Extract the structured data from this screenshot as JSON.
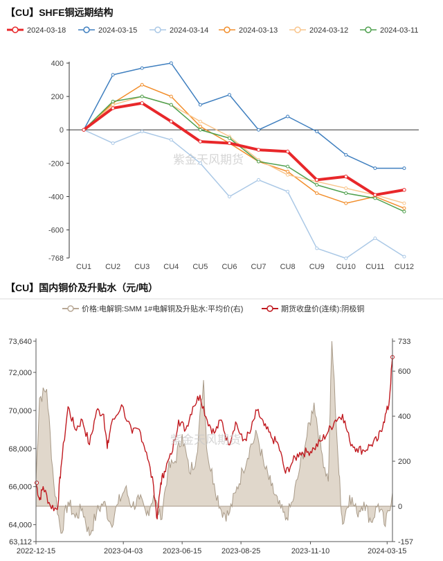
{
  "chart_data": [
    {
      "type": "line",
      "title": "【CU】SHFE铜远期结构",
      "categories": [
        "CU1",
        "CU2",
        "CU3",
        "CU4",
        "CU5",
        "CU6",
        "CU7",
        "CU8",
        "CU9",
        "CU10",
        "CU11",
        "CU12"
      ],
      "ylim": [
        -768,
        400
      ],
      "yticks": [
        400,
        200,
        0,
        -200,
        -400,
        -600,
        -768
      ],
      "watermark": "紫金天风期货",
      "series": [
        {
          "name": "2024-03-18",
          "color": "#e8272a",
          "width": 4,
          "values": [
            0,
            130,
            160,
            50,
            -70,
            -80,
            -120,
            -130,
            -300,
            -280,
            -390,
            -360
          ]
        },
        {
          "name": "2024-03-15",
          "color": "#3f7fbf",
          "width": 1.5,
          "values": [
            0,
            330,
            370,
            400,
            150,
            210,
            0,
            80,
            -10,
            -150,
            -230,
            -230
          ]
        },
        {
          "name": "2024-03-14",
          "color": "#aac8e6",
          "width": 1.5,
          "values": [
            0,
            -80,
            -10,
            -60,
            -200,
            -400,
            -300,
            -370,
            -710,
            -770,
            -650,
            -760
          ]
        },
        {
          "name": "2024-03-13",
          "color": "#f28e2b",
          "width": 1.5,
          "values": [
            0,
            160,
            270,
            200,
            20,
            -80,
            -190,
            -250,
            -380,
            -440,
            -400,
            -470
          ]
        },
        {
          "name": "2024-03-12",
          "color": "#f9c58c",
          "width": 1.5,
          "values": [
            0,
            150,
            200,
            150,
            50,
            -40,
            -180,
            -270,
            -310,
            -350,
            -390,
            -440
          ]
        },
        {
          "name": "2024-03-11",
          "color": "#4ea04e",
          "width": 1.5,
          "values": [
            0,
            170,
            200,
            150,
            0,
            -50,
            -190,
            -220,
            -330,
            -380,
            -410,
            -490
          ]
        }
      ]
    },
    {
      "type": "area+line",
      "title": "【CU】国内铜价及升贴水（元/吨）",
      "x_ticks": [
        "2022-12-15",
        "2023-04-03",
        "2023-06-15",
        "2023-08-25",
        "2023-11-10",
        "2024-03-15"
      ],
      "y_left": {
        "ticks": [
          "73,640",
          "72,000",
          "70,000",
          "68,000",
          "66,000",
          "64,000",
          "63,112"
        ],
        "range": [
          63112,
          73640
        ]
      },
      "y_right": {
        "ticks": [
          "733",
          "600",
          "400",
          "200",
          "0",
          "-157"
        ],
        "range": [
          -157,
          733
        ]
      },
      "watermark": "紫金天风期货",
      "series": [
        {
          "name": "价格:电解铜:SMM 1#电解铜及升贴水:平均价(右)",
          "axis": "right",
          "style": "area",
          "color": "#b8a896",
          "anchors": [
            [
              0,
              120
            ],
            [
              0.01,
              480
            ],
            [
              0.03,
              520
            ],
            [
              0.05,
              100
            ],
            [
              0.07,
              -120
            ],
            [
              0.09,
              20
            ],
            [
              0.11,
              -50
            ],
            [
              0.13,
              -10
            ],
            [
              0.15,
              -130
            ],
            [
              0.17,
              -30
            ],
            [
              0.19,
              20
            ],
            [
              0.21,
              -80
            ],
            [
              0.23,
              10
            ],
            [
              0.25,
              80
            ],
            [
              0.27,
              0
            ],
            [
              0.29,
              30
            ],
            [
              0.31,
              -40
            ],
            [
              0.33,
              50
            ],
            [
              0.35,
              -60
            ],
            [
              0.37,
              160
            ],
            [
              0.39,
              200
            ],
            [
              0.41,
              320
            ],
            [
              0.43,
              150
            ],
            [
              0.45,
              220
            ],
            [
              0.47,
              560
            ],
            [
              0.48,
              240
            ],
            [
              0.5,
              100
            ],
            [
              0.52,
              -20
            ],
            [
              0.54,
              -40
            ],
            [
              0.56,
              60
            ],
            [
              0.58,
              160
            ],
            [
              0.6,
              260
            ],
            [
              0.62,
              320
            ],
            [
              0.64,
              180
            ],
            [
              0.66,
              90
            ],
            [
              0.68,
              10
            ],
            [
              0.7,
              -60
            ],
            [
              0.72,
              20
            ],
            [
              0.74,
              170
            ],
            [
              0.76,
              310
            ],
            [
              0.78,
              460
            ],
            [
              0.8,
              250
            ],
            [
              0.82,
              110
            ],
            [
              0.83,
              740
            ],
            [
              0.85,
              140
            ],
            [
              0.86,
              -80
            ],
            [
              0.88,
              50
            ],
            [
              0.9,
              -30
            ],
            [
              0.92,
              20
            ],
            [
              0.94,
              -70
            ],
            [
              0.96,
              10
            ],
            [
              0.98,
              -90
            ],
            [
              1,
              60
            ]
          ]
        },
        {
          "name": "期货收盘价(连续):阴极铜",
          "axis": "left",
          "style": "line",
          "color": "#c0191f",
          "anchors": [
            [
              0,
              66200
            ],
            [
              0.01,
              65300
            ],
            [
              0.02,
              66000
            ],
            [
              0.04,
              65000
            ],
            [
              0.06,
              64800
            ],
            [
              0.07,
              67000
            ],
            [
              0.09,
              70200
            ],
            [
              0.11,
              69000
            ],
            [
              0.13,
              69500
            ],
            [
              0.15,
              68200
            ],
            [
              0.17,
              70000
            ],
            [
              0.19,
              69800
            ],
            [
              0.2,
              68000
            ],
            [
              0.21,
              69200
            ],
            [
              0.24,
              70300
            ],
            [
              0.27,
              68800
            ],
            [
              0.29,
              69000
            ],
            [
              0.31,
              67800
            ],
            [
              0.33,
              66000
            ],
            [
              0.34,
              64300
            ],
            [
              0.35,
              66200
            ],
            [
              0.36,
              66800
            ],
            [
              0.38,
              67700
            ],
            [
              0.4,
              69500
            ],
            [
              0.42,
              69000
            ],
            [
              0.44,
              70200
            ],
            [
              0.46,
              70800
            ],
            [
              0.48,
              69500
            ],
            [
              0.5,
              68800
            ],
            [
              0.52,
              69500
            ],
            [
              0.54,
              68200
            ],
            [
              0.56,
              69400
            ],
            [
              0.58,
              68400
            ],
            [
              0.6,
              68800
            ],
            [
              0.62,
              70000
            ],
            [
              0.64,
              69200
            ],
            [
              0.66,
              68600
            ],
            [
              0.68,
              68200
            ],
            [
              0.7,
              66700
            ],
            [
              0.72,
              67300
            ],
            [
              0.74,
              67800
            ],
            [
              0.76,
              67800
            ],
            [
              0.78,
              68000
            ],
            [
              0.8,
              68400
            ],
            [
              0.82,
              68900
            ],
            [
              0.84,
              69500
            ],
            [
              0.86,
              69800
            ],
            [
              0.88,
              68400
            ],
            [
              0.9,
              68000
            ],
            [
              0.92,
              67900
            ],
            [
              0.94,
              68200
            ],
            [
              0.96,
              68500
            ],
            [
              0.975,
              69400
            ],
            [
              0.99,
              70300
            ],
            [
              1,
              72800
            ]
          ]
        }
      ]
    }
  ]
}
